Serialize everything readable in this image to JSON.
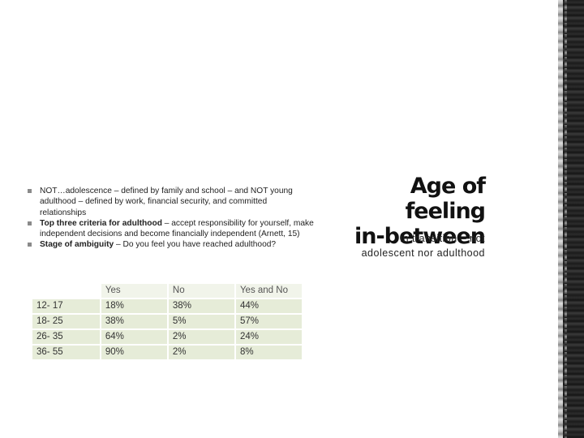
{
  "title": {
    "line1": "Age of feeling",
    "line2": "in-between"
  },
  "subtitle": "in transition – not adolescent nor adulthood",
  "bullets": [
    {
      "bold": "",
      "text": "NOT…adolescence – defined by family and school – and NOT young adulthood – defined by work, financial security, and committed relationships"
    },
    {
      "bold": "Top three criteria for adulthood",
      "text": " – accept responsibility for yourself, make independent decisions and become financially independent (Arnett, 15)"
    },
    {
      "bold": "Stage of ambiguity",
      "text": " – Do you feel you have reached adulthood?"
    }
  ],
  "table": {
    "headers": [
      "",
      "Yes",
      "No",
      "Yes and No"
    ],
    "rows": [
      [
        "12- 17",
        "18%",
        "38%",
        "44%"
      ],
      [
        "18- 25",
        "38%",
        "5%",
        "57%"
      ],
      [
        "26- 35",
        "64%",
        "2%",
        "24%"
      ],
      [
        "36- 55",
        "90%",
        "2%",
        "8%"
      ]
    ]
  },
  "colors": {
    "row_fill": "#e6ecd8",
    "stripe": "#202020"
  }
}
